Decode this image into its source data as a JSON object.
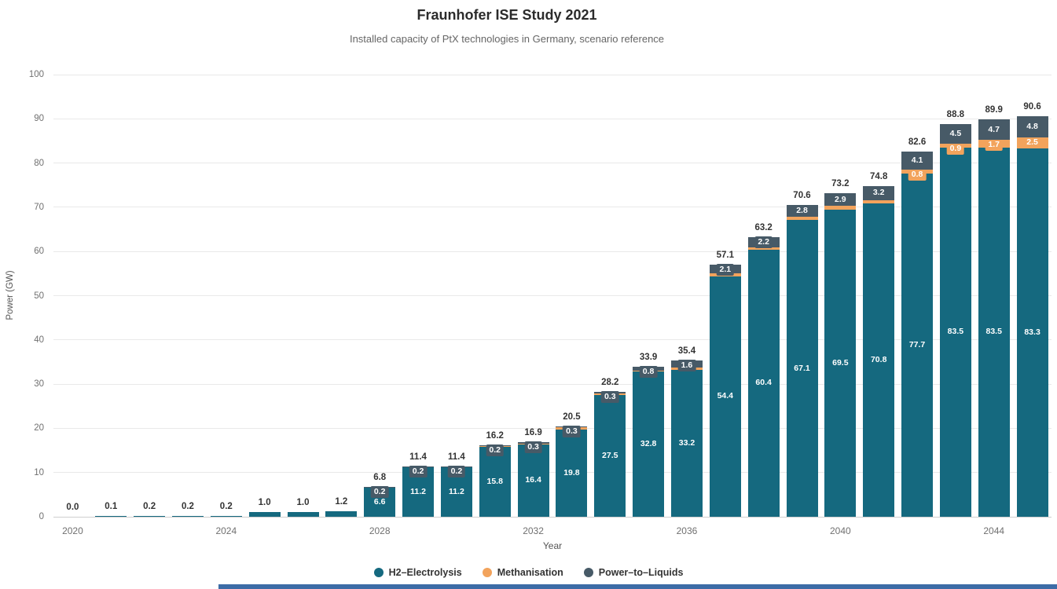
{
  "title": "Fraunhofer ISE Study 2021",
  "subtitle": "Installed capacity of PtX technologies in Germany, scenario reference",
  "ylabel": "Power (GW)",
  "xlabel": "Year",
  "colors": {
    "h2": "#15697f",
    "methanisation": "#f2a35c",
    "ptl": "#475a67"
  },
  "legend": [
    {
      "label": "H2–Electrolysis",
      "color": "#15697f"
    },
    {
      "label": "Methanisation",
      "color": "#f2a35c"
    },
    {
      "label": "Power–to–Liquids",
      "color": "#475a67"
    }
  ],
  "chart_data": {
    "type": "bar",
    "stacked": true,
    "x": [
      2020,
      2021,
      2022,
      2023,
      2024,
      2025,
      2026,
      2027,
      2028,
      2029,
      2030,
      2031,
      2032,
      2033,
      2034,
      2035,
      2036,
      2037,
      2038,
      2039,
      2040,
      2041,
      2042,
      2043,
      2044,
      2045
    ],
    "xticks": [
      2020,
      2024,
      2028,
      2032,
      2036,
      2040,
      2044
    ],
    "ylim": [
      0,
      100
    ],
    "yticks": [
      0,
      10,
      20,
      30,
      40,
      50,
      60,
      70,
      80,
      90,
      100
    ],
    "series": [
      {
        "name": "H2–Electrolysis",
        "values": [
          0.0,
          0.1,
          0.2,
          0.2,
          0.2,
          1.0,
          1.0,
          1.2,
          6.6,
          11.2,
          11.2,
          15.8,
          16.4,
          19.8,
          27.5,
          32.8,
          33.2,
          54.4,
          60.4,
          67.1,
          69.5,
          70.8,
          77.7,
          83.5,
          83.5,
          83.3
        ],
        "labels": [
          null,
          null,
          null,
          null,
          null,
          null,
          null,
          null,
          "6.6",
          "11.2",
          "11.2",
          "15.8",
          "16.4",
          "19.8",
          "27.5",
          "32.8",
          "33.2",
          "54.4",
          "60.4",
          "67.1",
          "69.5",
          "70.8",
          "77.7",
          "83.5",
          "83.5",
          "83.3"
        ]
      },
      {
        "name": "Methanisation",
        "values": [
          0,
          0,
          0,
          0,
          0,
          0,
          0,
          0,
          0,
          0,
          0,
          0.2,
          0.2,
          0.4,
          0.4,
          0.3,
          0.6,
          0.6,
          0.6,
          0.7,
          0.8,
          0.8,
          0.8,
          0.9,
          1.7,
          2.5
        ],
        "labels": [
          null,
          null,
          null,
          null,
          null,
          null,
          null,
          null,
          null,
          null,
          null,
          null,
          null,
          null,
          null,
          null,
          null,
          null,
          null,
          null,
          null,
          null,
          "0.8",
          "0.9",
          "1.7",
          "2.5"
        ]
      },
      {
        "name": "Power–to–Liquids",
        "values": [
          0,
          0,
          0,
          0,
          0,
          0,
          0,
          0,
          0.2,
          0.2,
          0.2,
          0.2,
          0.3,
          0.3,
          0.3,
          0.8,
          1.6,
          2.1,
          2.2,
          2.8,
          2.9,
          3.2,
          4.1,
          4.5,
          4.7,
          4.8
        ],
        "labels": [
          null,
          null,
          null,
          null,
          null,
          null,
          null,
          null,
          "0.2",
          "0.2",
          "0.2",
          "0.2",
          "0.3",
          "0.3",
          "0.3",
          "0.8",
          "1.6",
          "2.1",
          "2.2",
          "2.8",
          "2.9",
          "3.2",
          "4.1",
          "4.5",
          "4.7",
          "4.8"
        ]
      }
    ],
    "totals": [
      "0.0",
      "0.1",
      "0.2",
      "0.2",
      "0.2",
      "1.0",
      "1.0",
      "1.2",
      "6.8",
      "11.4",
      "11.4",
      "16.2",
      "16.9",
      "20.5",
      "28.2",
      "33.9",
      "35.4",
      "57.1",
      "63.2",
      "70.6",
      "73.2",
      "74.8",
      "82.6",
      "88.8",
      "89.9",
      "90.6"
    ]
  }
}
